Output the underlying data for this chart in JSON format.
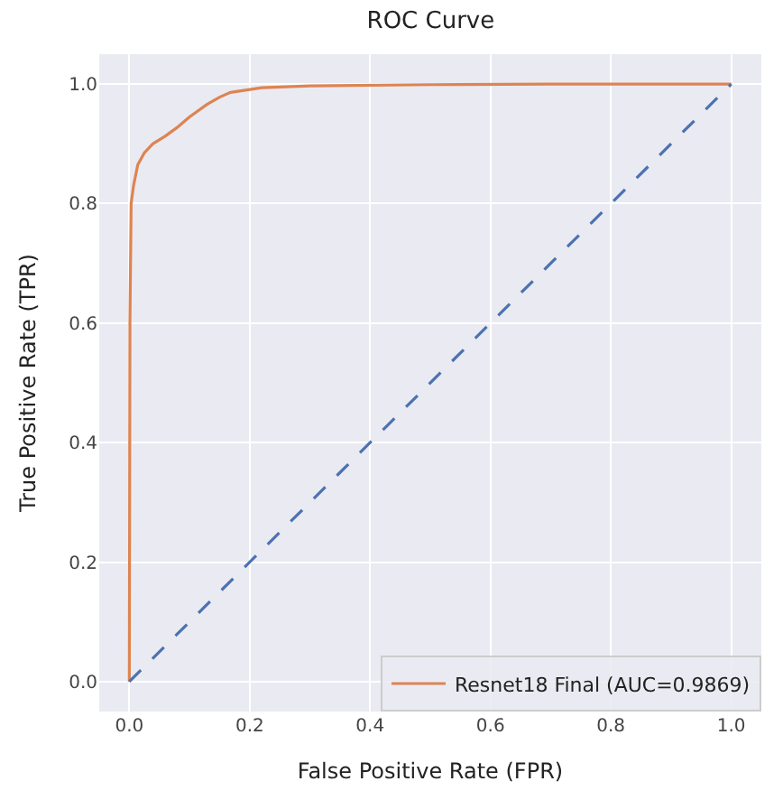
{
  "chart_data": {
    "type": "line",
    "title": "ROC Curve",
    "xlabel": "False Positive Rate (FPR)",
    "ylabel": "True Positive Rate (TPR)",
    "series": [
      {
        "name": "Resnet18 Final (AUC=0.9869)",
        "color": "#dd8452",
        "line_style": "solid",
        "x": [
          0,
          0.001,
          0.003,
          0.007,
          0.014,
          0.025,
          0.039,
          0.06,
          0.079,
          0.1,
          0.129,
          0.15,
          0.168,
          0.22,
          0.3,
          0.5,
          0.7,
          1.0
        ],
        "values": [
          0,
          0.6,
          0.8,
          0.83,
          0.865,
          0.885,
          0.9,
          0.913,
          0.927,
          0.945,
          0.966,
          0.978,
          0.986,
          0.994,
          0.997,
          0.999,
          1.0,
          1.0
        ]
      },
      {
        "color": "#4c72b0",
        "line_style": "dashed",
        "x": [
          0,
          1
        ],
        "values": [
          0,
          1
        ]
      }
    ],
    "xlim": [
      -0.05,
      1.05
    ],
    "ylim": [
      -0.05,
      1.05
    ],
    "xticks": [
      {
        "value": 0,
        "label": "0.0"
      },
      0.2,
      0.4,
      0.6,
      0.8,
      {
        "value": 1,
        "label": "1.0"
      }
    ],
    "yticks": [
      {
        "value": 0,
        "label": "0.0"
      },
      0.2,
      0.4,
      0.6,
      0.8,
      {
        "value": 1,
        "label": "1.0"
      }
    ],
    "grid": true,
    "legend": "bottom right"
  }
}
